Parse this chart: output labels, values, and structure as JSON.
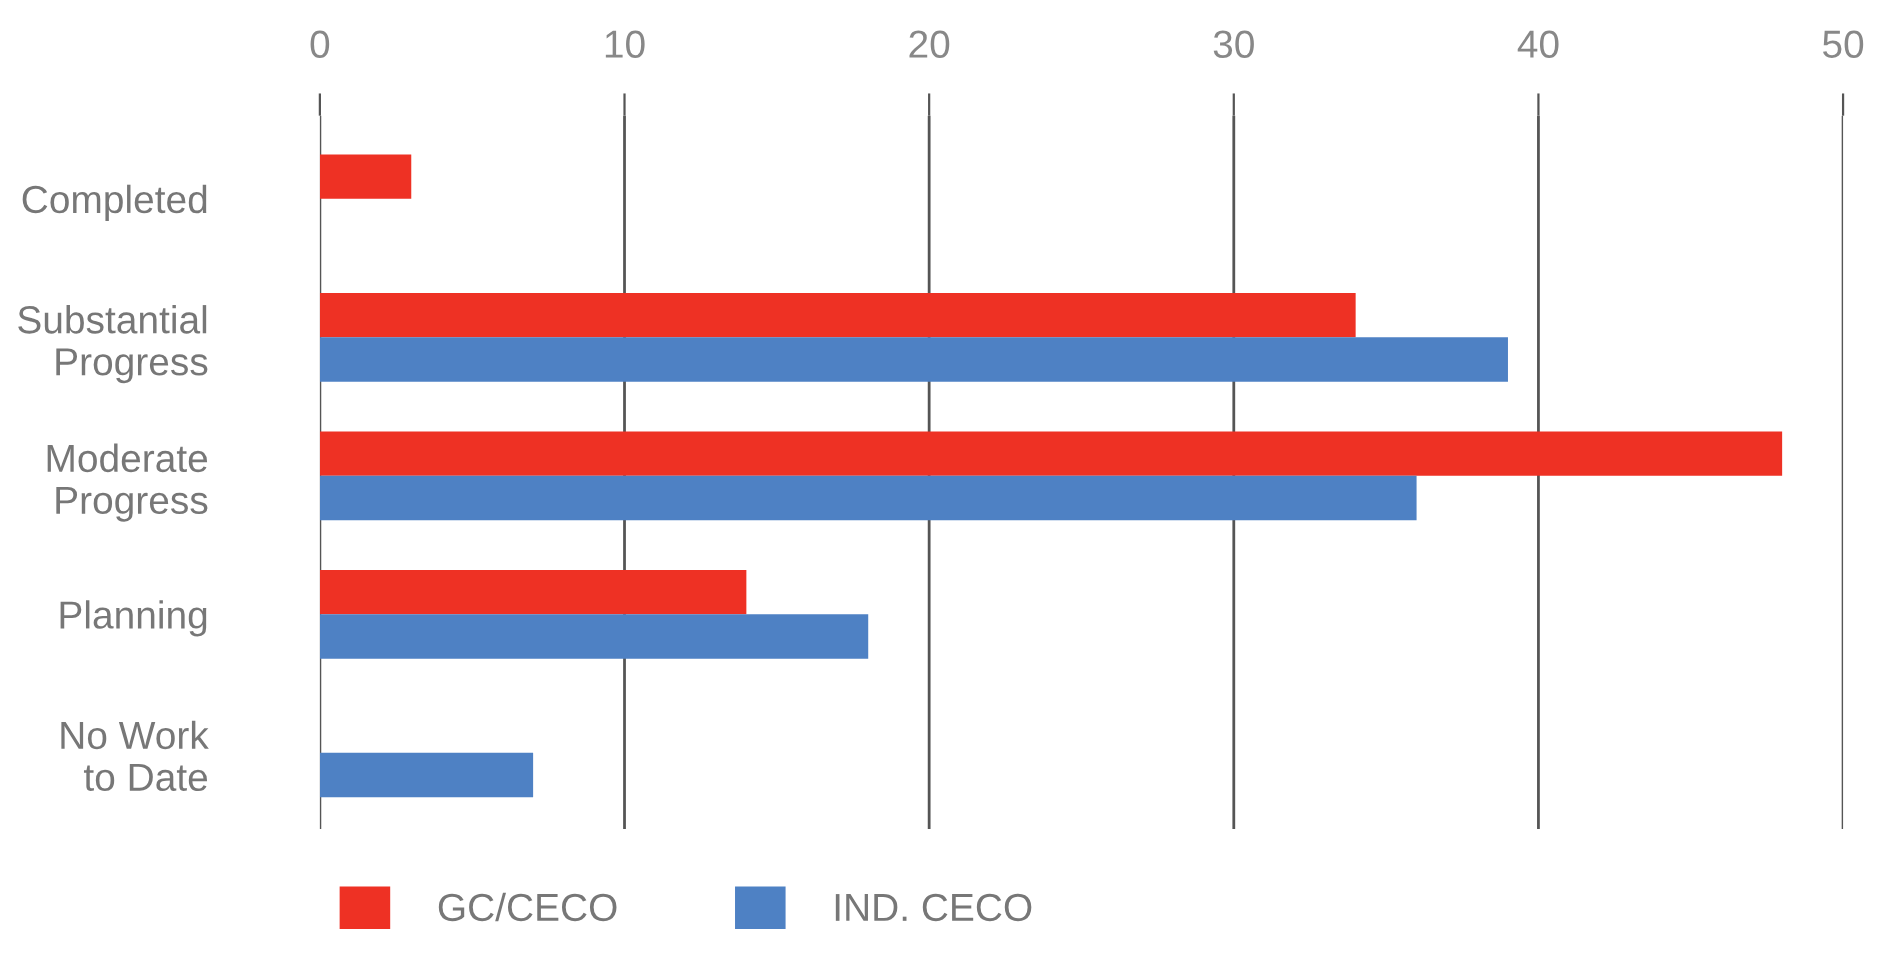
{
  "chart_data": {
    "type": "bar",
    "orientation": "horizontal",
    "categories": [
      "Completed",
      "Substantial\nProgress",
      "Moderate\nProgress",
      "Planning",
      "No Work\nto Date"
    ],
    "series": [
      {
        "name": "GC/CECO",
        "color": "#ee3124",
        "values": [
          3,
          34,
          48,
          14,
          null
        ]
      },
      {
        "name": "IND. CECO",
        "color": "#4e81c4",
        "values": [
          null,
          39,
          36,
          18,
          7
        ]
      }
    ],
    "xlim": [
      0,
      50
    ],
    "xticks": [
      0,
      10,
      20,
      30,
      40,
      50
    ],
    "grid": "x",
    "legend": "bottom left"
  }
}
